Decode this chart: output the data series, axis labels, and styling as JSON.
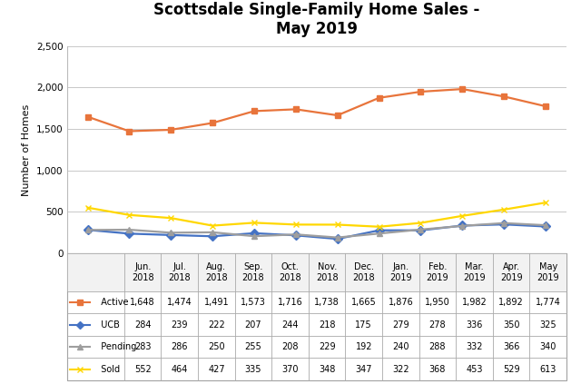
{
  "title": "Scottsdale Single-Family Home Sales -\nMay 2019",
  "ylabel": "Number of Homes",
  "categories": [
    "Jun.\n2018",
    "Jul.\n2018",
    "Aug.\n2018",
    "Sep.\n2018",
    "Oct.\n2018",
    "Nov.\n2018",
    "Dec.\n2018",
    "Jan.\n2019",
    "Feb.\n2019",
    "Mar.\n2019",
    "Apr.\n2019",
    "May\n2019"
  ],
  "col_headers": [
    "Jun.\n2018",
    "Jul.\n2018",
    "Aug.\n2018",
    "Sep.\n2018",
    "Oct.\n2018",
    "Nov.\n2018",
    "Dec.\n2018",
    "Jan.\n2019",
    "Feb.\n2019",
    "Mar.\n2019",
    "Apr.\n2019",
    "May\n2019"
  ],
  "series_order": [
    "Active",
    "UCB",
    "Pending",
    "Sold"
  ],
  "series": {
    "Active": [
      1648,
      1474,
      1491,
      1573,
      1716,
      1738,
      1665,
      1876,
      1950,
      1982,
      1892,
      1774
    ],
    "UCB": [
      284,
      239,
      222,
      207,
      244,
      218,
      175,
      279,
      278,
      336,
      350,
      325
    ],
    "Pending": [
      283,
      286,
      250,
      255,
      208,
      229,
      192,
      240,
      288,
      332,
      366,
      340
    ],
    "Sold": [
      552,
      464,
      427,
      335,
      370,
      348,
      347,
      322,
      368,
      453,
      529,
      613
    ]
  },
  "colors": {
    "Active": "#E8743B",
    "UCB": "#4472C4",
    "Pending": "#9E9E9E",
    "Sold": "#FFD700"
  },
  "markers": {
    "Active": "s",
    "UCB": "D",
    "Pending": "^",
    "Sold": "x"
  },
  "ylim": [
    0,
    2500
  ],
  "yticks": [
    0,
    500,
    1000,
    1500,
    2000,
    2500
  ],
  "ytick_labels": [
    "0",
    "500",
    "1,000",
    "1,500",
    "2,000",
    "2,500"
  ],
  "background_color": "#FFFFFF",
  "grid_color": "#C8C8C8",
  "title_fontsize": 12,
  "axis_label_fontsize": 8,
  "tick_fontsize": 7.5,
  "table_fontsize": 7,
  "line_width": 1.6,
  "marker_size": 5
}
